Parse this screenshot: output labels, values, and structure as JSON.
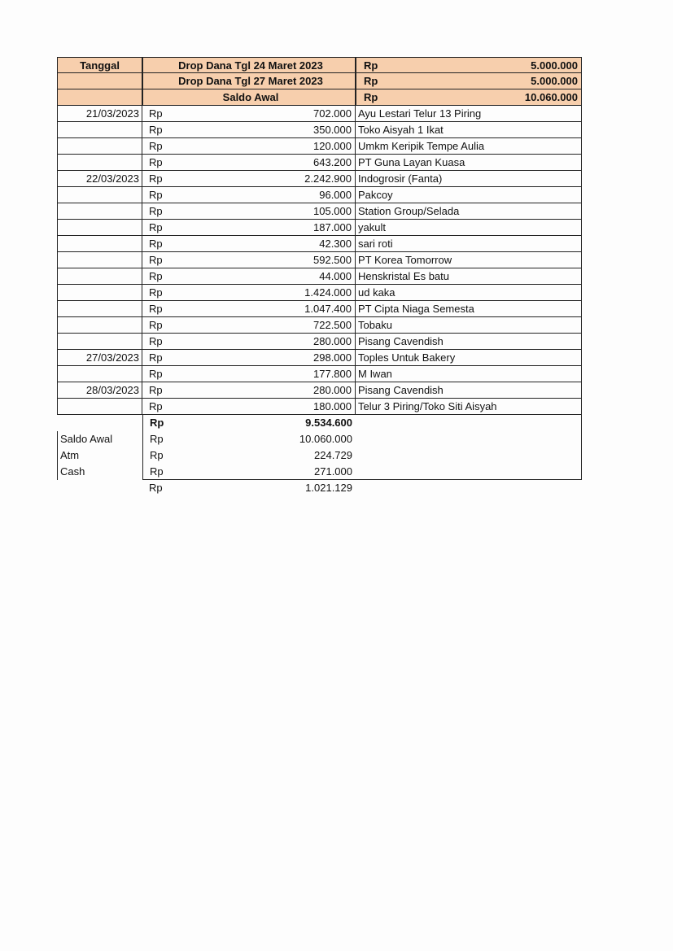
{
  "header": {
    "col_date": "Tanggal",
    "rows": [
      {
        "label": "Drop Dana Tgl 24 Maret 2023",
        "currency": "Rp",
        "amount": "5.000.000"
      },
      {
        "label": "Drop Dana Tgl 27 Maret 2023",
        "currency": "Rp",
        "amount": "5.000.000"
      },
      {
        "label": "Saldo Awal",
        "currency": "Rp",
        "amount": "10.060.000"
      }
    ]
  },
  "header_color": "#f7cfad",
  "transactions": [
    {
      "date": "21/03/2023",
      "currency": "Rp",
      "amount": "702.000",
      "description": "Ayu Lestari Telur 13 Piring"
    },
    {
      "date": "",
      "currency": "Rp",
      "amount": "350.000",
      "description": "Toko Aisyah 1 Ikat"
    },
    {
      "date": "",
      "currency": "Rp",
      "amount": "120.000",
      "description": "Umkm Keripik Tempe Aulia"
    },
    {
      "date": "",
      "currency": "Rp",
      "amount": "643.200",
      "description": "PT Guna Layan Kuasa"
    },
    {
      "date": "22/03/2023",
      "currency": "Rp",
      "amount": "2.242.900",
      "description": "Indogrosir (Fanta)"
    },
    {
      "date": "",
      "currency": "Rp",
      "amount": "96.000",
      "description": "Pakcoy"
    },
    {
      "date": "",
      "currency": "Rp",
      "amount": "105.000",
      "description": "Station Group/Selada"
    },
    {
      "date": "",
      "currency": "Rp",
      "amount": "187.000",
      "description": "yakult"
    },
    {
      "date": "",
      "currency": "Rp",
      "amount": "42.300",
      "description": "sari roti"
    },
    {
      "date": "",
      "currency": "Rp",
      "amount": "592.500",
      "description": "PT Korea Tomorrow"
    },
    {
      "date": "",
      "currency": "Rp",
      "amount": "44.000",
      "description": "Henskristal Es batu"
    },
    {
      "date": "",
      "currency": "Rp",
      "amount": "1.424.000",
      "description": "ud kaka"
    },
    {
      "date": "",
      "currency": "Rp",
      "amount": "1.047.400",
      "description": "PT Cipta Niaga Semesta"
    },
    {
      "date": "",
      "currency": "Rp",
      "amount": "722.500",
      "description": "Tobaku"
    },
    {
      "date": "",
      "currency": "Rp",
      "amount": "280.000",
      "description": "Pisang Cavendish"
    },
    {
      "date": "27/03/2023",
      "currency": "Rp",
      "amount": "298.000",
      "description": "Toples Untuk Bakery"
    },
    {
      "date": "",
      "currency": "Rp",
      "amount": "177.800",
      "description": "M Iwan"
    },
    {
      "date": "28/03/2023",
      "currency": "Rp",
      "amount": "280.000",
      "description": "Pisang Cavendish"
    },
    {
      "date": "",
      "currency": "Rp",
      "amount": "180.000",
      "description": "Telur 3 Piring/Toko Siti Aisyah"
    }
  ],
  "summary": {
    "total": {
      "label": "",
      "currency": "Rp",
      "amount": "9.534.600"
    },
    "rows": [
      {
        "label": "Saldo Awal",
        "currency": "Rp",
        "amount": "10.060.000"
      },
      {
        "label": "Atm",
        "currency": "Rp",
        "amount": "224.729"
      },
      {
        "label": "Cash",
        "currency": "Rp",
        "amount": "271.000"
      }
    ],
    "remainder": {
      "currency": "Rp",
      "amount": "1.021.129"
    }
  }
}
